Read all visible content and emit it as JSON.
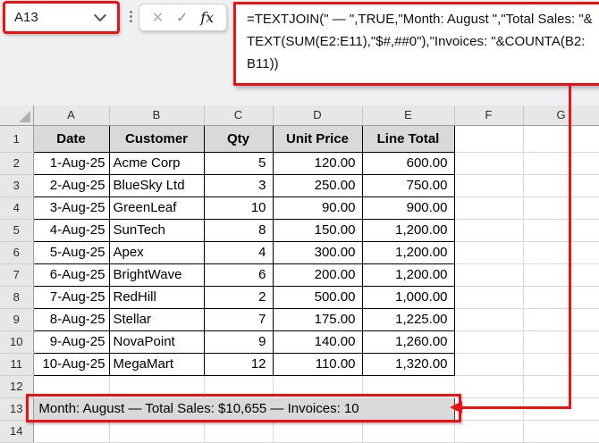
{
  "name_box": {
    "value": "A13"
  },
  "formula_bar": {
    "dots_icon": "⋮",
    "cancel_icon": "✕",
    "enter_icon": "✓",
    "fx_label": "fx",
    "formula_lines": [
      "=TEXTJOIN(\" — \",TRUE,\"Month: August \",\"Total Sales: \"&",
      "TEXT(SUM(E2:E11),\"$#,##0\"),\"Invoices: \"&COUNTA(B2:",
      "B11))"
    ]
  },
  "colors": {
    "annotation_red": "#ee1111",
    "table_header_fill": "#d9d9d9",
    "summary_fill": "#d9d9d9",
    "grid_header_fill": "#e7e7e7",
    "cell_border": "#000000"
  },
  "sheet": {
    "column_letters": [
      "A",
      "B",
      "C",
      "D",
      "E",
      "F",
      "G"
    ],
    "rows": [
      {
        "n": "1",
        "type": "header",
        "cells": [
          "Date",
          "Customer",
          "Qty",
          "Unit Price",
          "Line Total"
        ]
      },
      {
        "n": "2",
        "type": "data",
        "cells": [
          "1-Aug-25",
          "Acme Corp",
          "5",
          "120.00",
          "600.00"
        ]
      },
      {
        "n": "3",
        "type": "data",
        "cells": [
          "2-Aug-25",
          "BlueSky Ltd",
          "3",
          "250.00",
          "750.00"
        ]
      },
      {
        "n": "4",
        "type": "data",
        "cells": [
          "3-Aug-25",
          "GreenLeaf",
          "10",
          "90.00",
          "900.00"
        ]
      },
      {
        "n": "5",
        "type": "data",
        "cells": [
          "4-Aug-25",
          "SunTech",
          "8",
          "150.00",
          "1,200.00"
        ]
      },
      {
        "n": "6",
        "type": "data",
        "cells": [
          "5-Aug-25",
          "Apex",
          "4",
          "300.00",
          "1,200.00"
        ]
      },
      {
        "n": "7",
        "type": "data",
        "cells": [
          "6-Aug-25",
          "BrightWave",
          "6",
          "200.00",
          "1,200.00"
        ]
      },
      {
        "n": "8",
        "type": "data",
        "cells": [
          "7-Aug-25",
          "RedHill",
          "2",
          "500.00",
          "1,000.00"
        ]
      },
      {
        "n": "9",
        "type": "data",
        "cells": [
          "8-Aug-25",
          "Stellar",
          "7",
          "175.00",
          "1,225.00"
        ]
      },
      {
        "n": "10",
        "type": "data",
        "cells": [
          "9-Aug-25",
          "NovaPoint",
          "9",
          "140.00",
          "1,260.00"
        ]
      },
      {
        "n": "11",
        "type": "data",
        "cells": [
          "10-Aug-25",
          "MegaMart",
          "12",
          "110.00",
          "1,320.00"
        ]
      },
      {
        "n": "12",
        "type": "empty"
      },
      {
        "n": "13",
        "type": "summary",
        "text": "Month: August — Total Sales: $10,655 — Invoices: 10"
      },
      {
        "n": "14",
        "type": "empty"
      }
    ]
  }
}
